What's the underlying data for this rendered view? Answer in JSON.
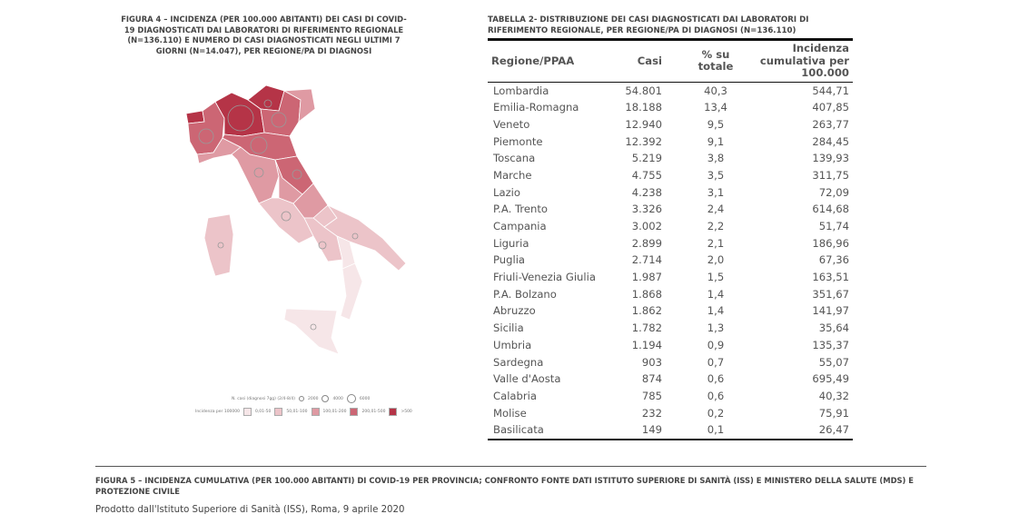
{
  "figure4": {
    "title": "FIGURA 4 – INCIDENZA (PER 100.000 ABITANTI) DEI CASI DI COVID-19 DIAGNOSTICATI DAI LABORATORI DI RIFERIMENTO REGIONALE (N=136.110) E NUMERO DI CASI DIAGNOSTICATI NEGLI ULTIMI 7 GIORNI (N=14.047), PER REGIONE/PA DI DIAGNOSI",
    "legend_cases_label": "N. casi (diagnosi 7gg) (2/4-8/4)",
    "legend_cases": [
      "2000",
      "4000",
      "6000"
    ],
    "legend_incidence_label": "Incidenza per 100000",
    "legend_incidence": [
      {
        "label": "0,01-50",
        "color": "#f6e6e8"
      },
      {
        "label": "50,01-100",
        "color": "#ecc4c9"
      },
      {
        "label": "100,01-200",
        "color": "#df9aa3"
      },
      {
        "label": "200,01-500",
        "color": "#cc6674"
      },
      {
        "label": ">500",
        "color": "#b53447"
      }
    ]
  },
  "table2": {
    "title": "TABELLA 2- DISTRIBUZIONE DEI CASI DIAGNOSTICATI DAI LABORATORI DI RIFERIMENTO REGIONALE, PER REGIONE/PA DI DIAGNOSI (N=136.110)",
    "headers": [
      "Regione/PPAA",
      "Casi",
      "% su totale",
      "Incidenza cumulativa per 100.000"
    ],
    "rows": [
      [
        "Lombardia",
        "54.801",
        "40,3",
        "544,71"
      ],
      [
        "Emilia-Romagna",
        "18.188",
        "13,4",
        "407,85"
      ],
      [
        "Veneto",
        "12.940",
        "9,5",
        "263,77"
      ],
      [
        "Piemonte",
        "12.392",
        "9,1",
        "284,45"
      ],
      [
        "Toscana",
        "5.219",
        "3,8",
        "139,93"
      ],
      [
        "Marche",
        "4.755",
        "3,5",
        "311,75"
      ],
      [
        "Lazio",
        "4.238",
        "3,1",
        "72,09"
      ],
      [
        "P.A. Trento",
        "3.326",
        "2,4",
        "614,68"
      ],
      [
        "Campania",
        "3.002",
        "2,2",
        "51,74"
      ],
      [
        "Liguria",
        "2.899",
        "2,1",
        "186,96"
      ],
      [
        "Puglia",
        "2.714",
        "2,0",
        "67,36"
      ],
      [
        "Friuli-Venezia Giulia",
        "1.987",
        "1,5",
        "163,51"
      ],
      [
        "P.A. Bolzano",
        "1.868",
        "1,4",
        "351,67"
      ],
      [
        "Abruzzo",
        "1.862",
        "1,4",
        "141,97"
      ],
      [
        "Sicilia",
        "1.782",
        "1,3",
        "35,64"
      ],
      [
        "Umbria",
        "1.194",
        "0,9",
        "135,37"
      ],
      [
        "Sardegna",
        "903",
        "0,7",
        "55,07"
      ],
      [
        "Valle d'Aosta",
        "874",
        "0,6",
        "695,49"
      ],
      [
        "Calabria",
        "785",
        "0,6",
        "40,32"
      ],
      [
        "Molise",
        "232",
        "0,2",
        "75,91"
      ],
      [
        "Basilicata",
        "149",
        "0,1",
        "26,47"
      ]
    ]
  },
  "figure5": {
    "title": "FIGURA 5 – INCIDENZA CUMULATIVA (PER 100.000 ABITANTI) DI COVID-19 PER PROVINCIA; CONFRONTO FONTE DATI ISTITUTO SUPERIORE DI SANITÀ (ISS) E MINISTERO DELLA SALUTE (MDS) E PROTEZIONE CIVILE",
    "credit": "Prodotto dall'Istituto Superiore di Sanità (ISS), Roma, 9 aprile 2020"
  }
}
